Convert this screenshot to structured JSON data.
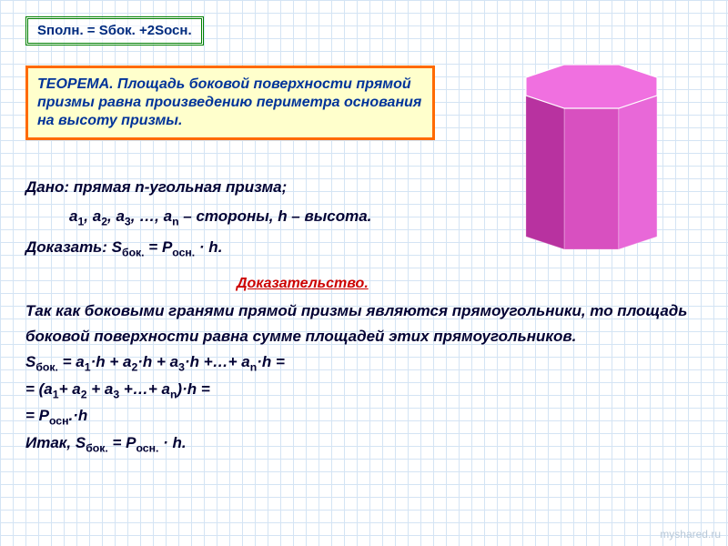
{
  "formula": "Sполн. = Sбок. +2Sосн.",
  "theorem": "ТЕОРЕМА. Площадь боковой поверхности прямой призмы равна произведению периметра основания на высоту призмы.",
  "given": {
    "line1_prefix": "Дано: прямая n-угольная призма;",
    "line2_html": "a<sub>1</sub>, a<sub>2</sub>, a<sub>3</sub>, …, a<sub>n</sub> – стороны, h – высота.",
    "line3_html": "Доказать: S<sub>бок.</sub> = P<sub>осн.</sub> · h."
  },
  "proof_title": "Доказательство.",
  "proof": {
    "p1": "Так как боковыми гранями прямой призмы являются прямоугольники, то площадь боковой поверхности равна сумме площадей этих прямоугольников.",
    "p2_html": "S<sub>бок.</sub> = a<sub>1</sub>·h + a<sub>2</sub>·h + a<sub>3</sub>·h +…+ a<sub>n</sub>·h =",
    "p3_html": "= (a<sub>1</sub>+ a<sub>2</sub> + a<sub>3</sub> +…+ a<sub>n</sub>)·h =",
    "p4_html": "= P<sub>осн</sub>.·h",
    "p5_html": "Итак, S<sub>бок.</sub> = P<sub>осн.</sub> · h."
  },
  "prism": {
    "top_fill": "#f070e0",
    "face_colors": [
      "#8b1a7a",
      "#b832a0",
      "#d850c0",
      "#e868d8",
      "#ec70e0"
    ],
    "top_stroke": "#ffffff",
    "face_stroke_opacity": 0.25
  },
  "watermark": "myshared.ru",
  "colors": {
    "grid": "#d4e4f4",
    "formula_border": "#008000",
    "theorem_border": "#ff6a00",
    "theorem_bg": "#ffffcc",
    "text_main": "#000033",
    "text_blue": "#003399",
    "proof_title": "#cc0000"
  }
}
